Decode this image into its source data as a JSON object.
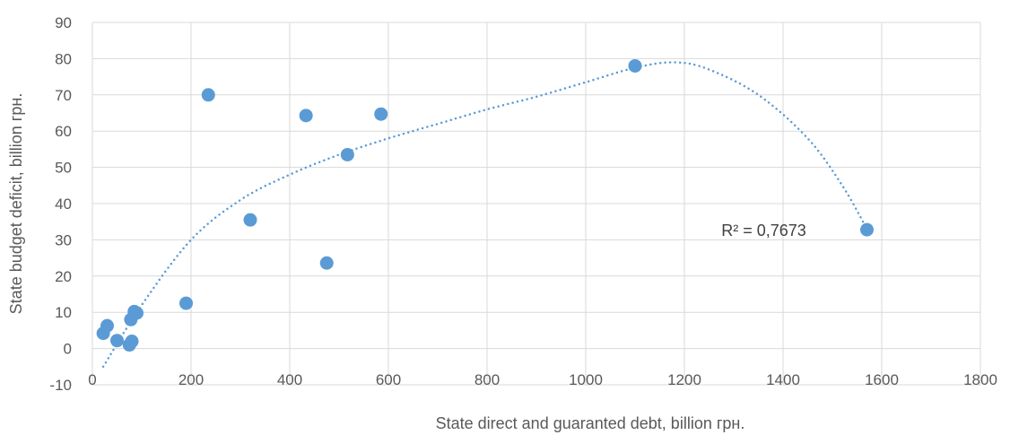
{
  "chart_data": {
    "type": "scatter",
    "title": "",
    "xlabel": "State direct and guaranted debt, billion грн.",
    "ylabel": "State budget deficit, billion грн.",
    "xlim": [
      0,
      1800
    ],
    "ylim": [
      -10,
      90
    ],
    "xticks": [
      0,
      200,
      400,
      600,
      800,
      1000,
      1200,
      1400,
      1600,
      1800
    ],
    "yticks": [
      -10,
      0,
      10,
      20,
      30,
      40,
      50,
      60,
      70,
      80,
      90
    ],
    "grid": true,
    "legend": "none",
    "colors": {
      "marker": "#5B9BD5",
      "trendline": "#5B9BD5",
      "grid": "#D9D9D9"
    },
    "series": [
      {
        "points": [
          {
            "x": 22,
            "y": 4.2
          },
          {
            "x": 30,
            "y": 6.3
          },
          {
            "x": 50,
            "y": 2.2
          },
          {
            "x": 75,
            "y": 1.0
          },
          {
            "x": 80,
            "y": 2.0
          },
          {
            "x": 78,
            "y": 8.0
          },
          {
            "x": 85,
            "y": 10.2
          },
          {
            "x": 90,
            "y": 9.8
          },
          {
            "x": 190,
            "y": 12.5
          },
          {
            "x": 235,
            "y": 70.0
          },
          {
            "x": 320,
            "y": 35.5
          },
          {
            "x": 433,
            "y": 64.3
          },
          {
            "x": 475,
            "y": 23.6
          },
          {
            "x": 517,
            "y": 53.5
          },
          {
            "x": 585,
            "y": 64.7
          },
          {
            "x": 1100,
            "y": 78.0
          },
          {
            "x": 1570,
            "y": 32.8
          }
        ]
      }
    ],
    "trendline": {
      "type": "polynomial",
      "points": [
        {
          "x": 22,
          "y": -5
        },
        {
          "x": 100,
          "y": 12
        },
        {
          "x": 200,
          "y": 30
        },
        {
          "x": 300,
          "y": 41
        },
        {
          "x": 400,
          "y": 48
        },
        {
          "x": 500,
          "y": 53.5
        },
        {
          "x": 600,
          "y": 58
        },
        {
          "x": 700,
          "y": 62
        },
        {
          "x": 800,
          "y": 66
        },
        {
          "x": 900,
          "y": 69.5
        },
        {
          "x": 1000,
          "y": 73.5
        },
        {
          "x": 1100,
          "y": 77.5
        },
        {
          "x": 1180,
          "y": 79
        },
        {
          "x": 1250,
          "y": 77
        },
        {
          "x": 1350,
          "y": 70
        },
        {
          "x": 1450,
          "y": 58
        },
        {
          "x": 1520,
          "y": 45
        },
        {
          "x": 1570,
          "y": 33
        }
      ]
    },
    "annotation": {
      "text": "R² = 0,7673",
      "x": 1375,
      "y": 32.8
    }
  }
}
